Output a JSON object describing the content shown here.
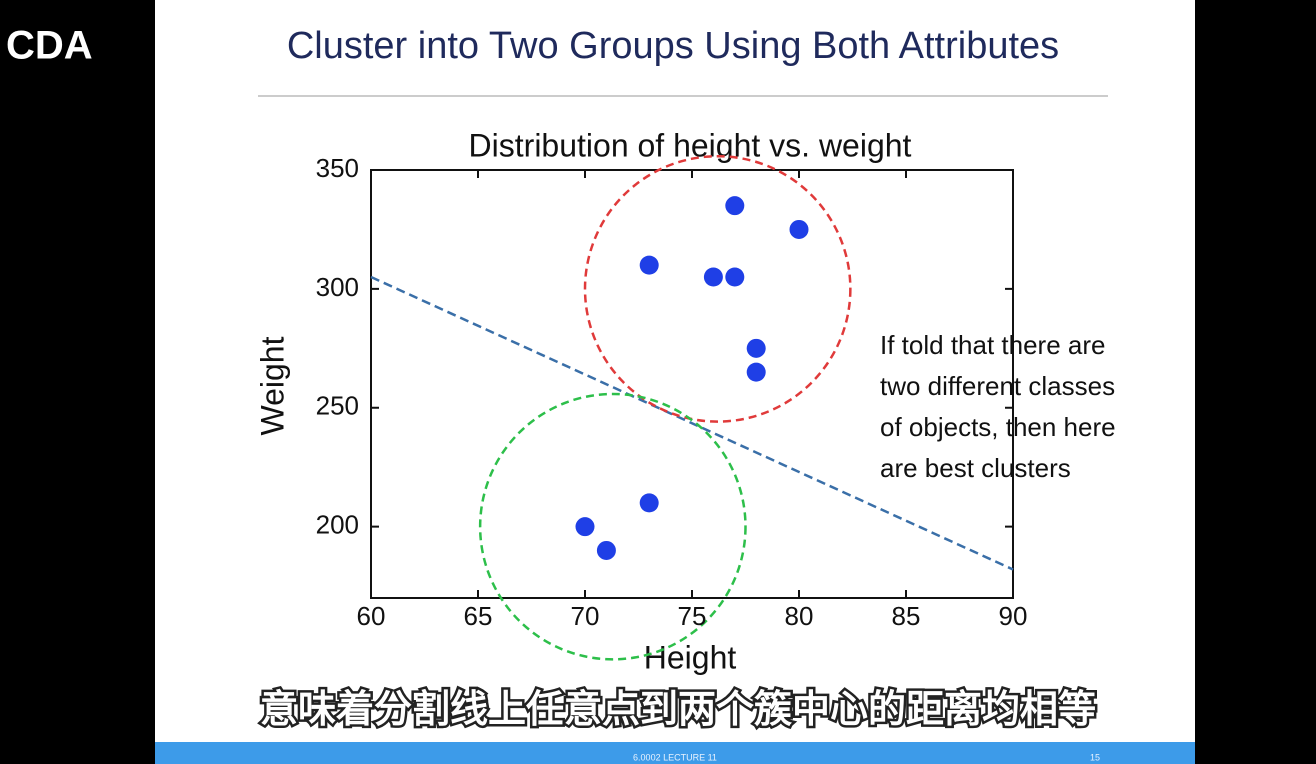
{
  "header": {
    "logo": "CDA",
    "title": "Cluster into Two Groups Using Both Attributes"
  },
  "chart_data": {
    "type": "scatter",
    "title": "Distribution of height vs. weight",
    "x_label": "Height",
    "y_label": "Weight",
    "x": [
      73,
      76,
      77,
      77,
      80,
      78,
      78,
      73,
      70,
      71
    ],
    "values": [
      310,
      305,
      305,
      335,
      325,
      275,
      265,
      210,
      200,
      190
    ],
    "color": "#1f3fe6",
    "xlim": [
      60,
      90
    ],
    "ylim": [
      170,
      350
    ],
    "xticks": [
      60,
      65,
      70,
      75,
      80,
      85,
      90
    ],
    "yticks": [
      200,
      250,
      300,
      350
    ],
    "divider": {
      "x": [
        60,
        90
      ],
      "y": [
        305,
        182
      ],
      "color": "#3a6fa8"
    },
    "circles": [
      {
        "cx": 76.2,
        "cy": 300,
        "r": 6.2,
        "color": "#e03a3a"
      },
      {
        "cx": 71.3,
        "cy": 200,
        "r": 6.2,
        "color": "#2dbf4a"
      }
    ]
  },
  "annotation": [
    "If told that there are",
    "two different classes",
    "of objects, then here",
    "are best clusters"
  ],
  "subtitle": "意味着分割线上任意点到两个簇中心的距离均相等",
  "footer": {
    "course": "6.0002 LECTURE 11",
    "page": "15"
  }
}
